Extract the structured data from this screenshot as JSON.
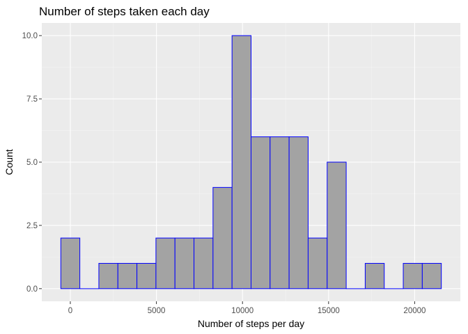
{
  "chart_data": {
    "type": "bar",
    "subtype": "histogram",
    "title": "Number of steps taken each day",
    "xlabel": "Number of steps per day",
    "ylabel": "Count",
    "bin_width": 1105,
    "bins": [
      {
        "start": -552.5,
        "end": 552.5,
        "count": 2
      },
      {
        "start": 552.5,
        "end": 1657.5,
        "count": 0
      },
      {
        "start": 1657.5,
        "end": 2762.5,
        "count": 1
      },
      {
        "start": 2762.5,
        "end": 3867.5,
        "count": 1
      },
      {
        "start": 3867.5,
        "end": 4972.5,
        "count": 1
      },
      {
        "start": 4972.5,
        "end": 6077.5,
        "count": 2
      },
      {
        "start": 6077.5,
        "end": 7182.5,
        "count": 2
      },
      {
        "start": 7182.5,
        "end": 8287.5,
        "count": 2
      },
      {
        "start": 8287.5,
        "end": 9392.5,
        "count": 4
      },
      {
        "start": 9392.5,
        "end": 10497.5,
        "count": 10
      },
      {
        "start": 10497.5,
        "end": 11602.5,
        "count": 6
      },
      {
        "start": 11602.5,
        "end": 12707.5,
        "count": 6
      },
      {
        "start": 12707.5,
        "end": 13812.5,
        "count": 6
      },
      {
        "start": 13812.5,
        "end": 14917.5,
        "count": 2
      },
      {
        "start": 14917.5,
        "end": 16022.5,
        "count": 5
      },
      {
        "start": 16022.5,
        "end": 17127.5,
        "count": 0
      },
      {
        "start": 17127.5,
        "end": 18232.5,
        "count": 1
      },
      {
        "start": 18232.5,
        "end": 19337.5,
        "count": 0
      },
      {
        "start": 19337.5,
        "end": 20442.5,
        "count": 1
      },
      {
        "start": 20442.5,
        "end": 21547.5,
        "count": 1
      }
    ],
    "xticks": [
      0,
      5000,
      10000,
      15000,
      20000
    ],
    "xtick_labels": [
      "0",
      "5000",
      "10000",
      "15000",
      "20000"
    ],
    "yticks": [
      0,
      2.5,
      5,
      7.5,
      10
    ],
    "ytick_labels": [
      "0.0",
      "2.5",
      "5.0",
      "7.5",
      "10.0"
    ],
    "xlim": [
      -1657.5,
      22652.5
    ],
    "ylim": [
      -0.5,
      10.5
    ],
    "grid": true,
    "legend": "none",
    "colors": {
      "panel_background": "#ebebeb",
      "grid_major": "#ffffff",
      "grid_minor": "#f5f5f5",
      "bar_fill": "#a3a3a3",
      "bar_outline": "#0000ff",
      "tick_label": "#4d4d4d",
      "tick_mark": "#333333"
    }
  }
}
